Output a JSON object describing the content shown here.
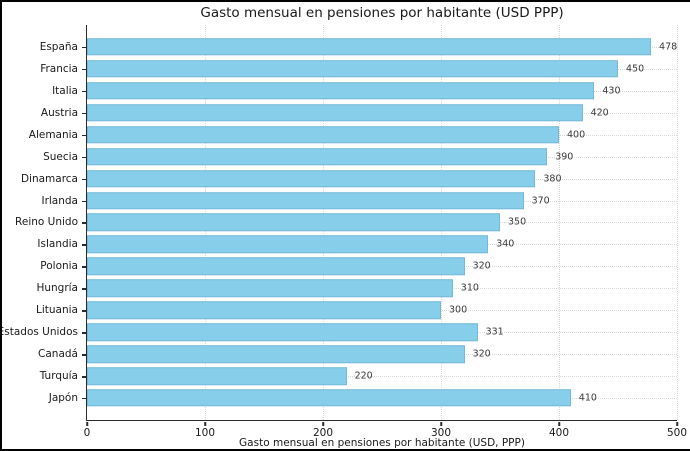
{
  "chart_data": {
    "type": "bar",
    "orientation": "horizontal",
    "title": "Gasto mensual en pensiones por habitante (USD PPP)",
    "xlabel": "Gasto mensual en pensiones por habitante (USD, PPP)",
    "ylabel": "",
    "categories": [
      "España",
      "Francia",
      "Italia",
      "Austria",
      "Alemania",
      "Suecia",
      "Dinamarca",
      "Irlanda",
      "Reino Unido",
      "Islandia",
      "Polonia",
      "Hungría",
      "Lituania",
      "Estados Unidos",
      "Canadá",
      "Turquía",
      "Japón"
    ],
    "values": [
      478,
      450,
      430,
      420,
      400,
      390,
      380,
      370,
      350,
      340,
      320,
      310,
      300,
      331,
      320,
      220,
      410
    ],
    "value_labels": [
      "478",
      "450",
      "430",
      "420",
      "400",
      "390",
      "380",
      "370",
      "350",
      "340",
      "320",
      "310",
      "300",
      "331",
      "320",
      "220",
      "410"
    ],
    "xlim": [
      0,
      500
    ],
    "xticks": [
      0,
      100,
      200,
      300,
      400,
      500
    ],
    "xtick_labels": [
      "0",
      "100",
      "200",
      "300",
      "400",
      "500"
    ],
    "grid": "dotted, both axes",
    "legend": "none",
    "colors": {
      "bar_fill": "#87CEEB",
      "bar_edge": "rgba(96,160,194,0.45)",
      "grid_line": "#d9d9d9",
      "axis_spine": "#2b2b2b",
      "text": "#1a1a1a",
      "value_text": "#3a3a3a",
      "background": "#ffffff",
      "frame_border": "#000000"
    }
  }
}
